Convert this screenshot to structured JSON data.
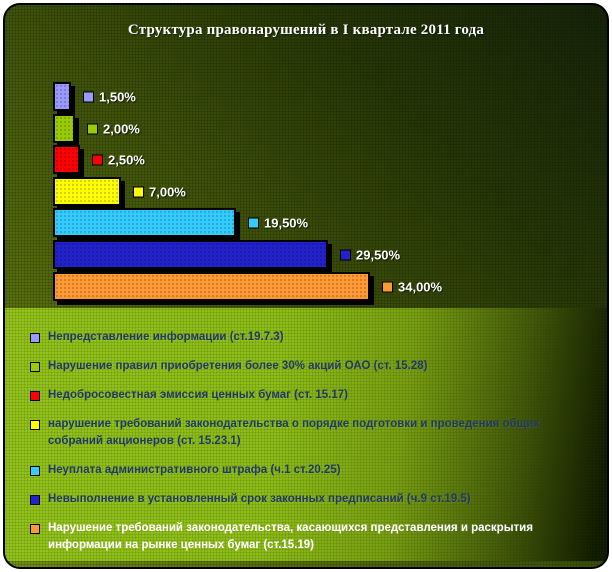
{
  "chart_data": {
    "type": "bar",
    "orientation": "horizontal",
    "title": "Структура правонарушений в I квартале 2011 года",
    "legend_position": "bottom",
    "grid": false,
    "axes_visible": false,
    "xlim": [
      0,
      35
    ],
    "value_label_format": "percent, comma decimal",
    "series": [
      {
        "name": "Непредставление информации (ст.19.7.3)",
        "value": 1.5,
        "label": "1,50%",
        "color": "#9999FF",
        "legend_text_color": "#1F3864"
      },
      {
        "name": "Нарушение правил приобретения более 30% акций ОАО (ст. 15.28)",
        "value": 2.0,
        "label": "2,00%",
        "color": "#99CC00",
        "legend_text_color": "#1F3864"
      },
      {
        "name": "Недобросовестная эмиссия ценных бумаг (ст. 15.17)",
        "value": 2.5,
        "label": "2,50%",
        "color": "#FF0000",
        "legend_text_color": "#1F3864"
      },
      {
        "name": "нарушение требований законодательства о порядке подготовки и проведения общих собраний акционеров (ст. 15.23.1)",
        "value": 7.0,
        "label": "7,00%",
        "color": "#FFFF00",
        "legend_text_color": "#1F3864"
      },
      {
        "name": "Неуплата административного штрафа (ч.1 ст.20.25)",
        "value": 19.5,
        "label": "19,50%",
        "color": "#33CCFF",
        "legend_text_color": "#1F3864"
      },
      {
        "name": "Невыполнение в установленный срок законных предписаний (ч.9 ст.19.5)",
        "value": 29.5,
        "label": "29,50%",
        "color": "#2222CC",
        "legend_text_color": "#1F3864"
      },
      {
        "name": "Нарушение требований законодательства, касающихся представления и раскрытия  информации на рынке ценных бумаг (ст.15.19)",
        "value": 34.0,
        "label": "34,00%",
        "color": "#FF9933",
        "legend_text_color": "#FFFFFF"
      }
    ]
  },
  "colors": {
    "title_text": "#FFFFFF",
    "value_label_text": "#FFFFFF",
    "legend_text_default": "#1F3864",
    "frame_border": "#000000",
    "chart_bg_light": "#7D9714",
    "chart_bg_dark": "#18220A",
    "legend_bg_light": "#9CCB1D",
    "legend_bg_dark": "#0E1600"
  }
}
